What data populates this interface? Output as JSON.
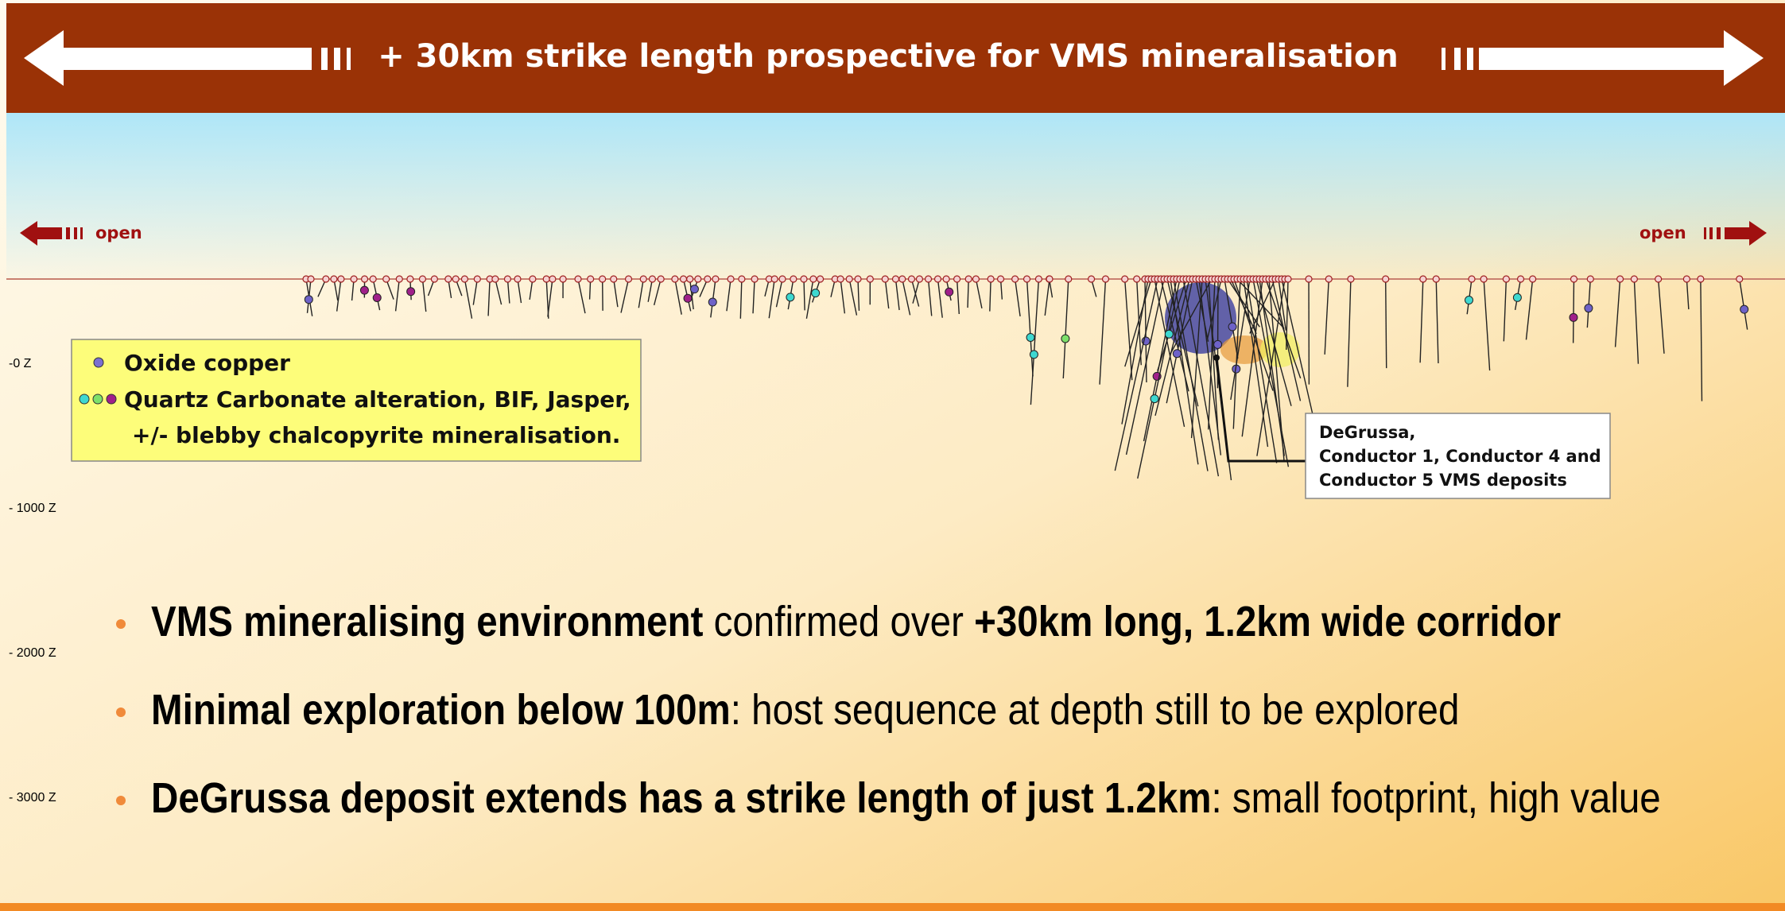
{
  "banner": {
    "title": "+ 30km strike length prospective for VMS mineralisation"
  },
  "open_left": "open",
  "open_right": "open",
  "depth_labels": [
    "-0 Z",
    "- 1000 Z",
    "- 2000 Z",
    "- 3000 Z"
  ],
  "legend": {
    "items": [
      "Oxide copper",
      "Quartz Carbonate alteration, BIF, Jasper,",
      "+/- blebby chalcopyrite mineralisation."
    ]
  },
  "callout": {
    "lines": [
      "DeGrussa,",
      "Conductor 1, Conductor 4 and",
      "Conductor 5 VMS deposits"
    ]
  },
  "bullets": [
    [
      {
        "text": "VMS mineralising environment",
        "bold": true
      },
      {
        "text": " confirmed over ",
        "bold": false
      },
      {
        "text": "+30km long, 1.2km wide corridor",
        "bold": true
      }
    ],
    [
      {
        "text": "Minimal exploration below 100m",
        "bold": true
      },
      {
        "text": ": host sequence at depth still to be explored",
        "bold": false
      }
    ],
    [
      {
        "text": "DeGrussa deposit extends has a strike length of just 1.2km",
        "bold": true
      },
      {
        "text": ": small footprint, high value",
        "bold": false
      }
    ]
  ]
}
